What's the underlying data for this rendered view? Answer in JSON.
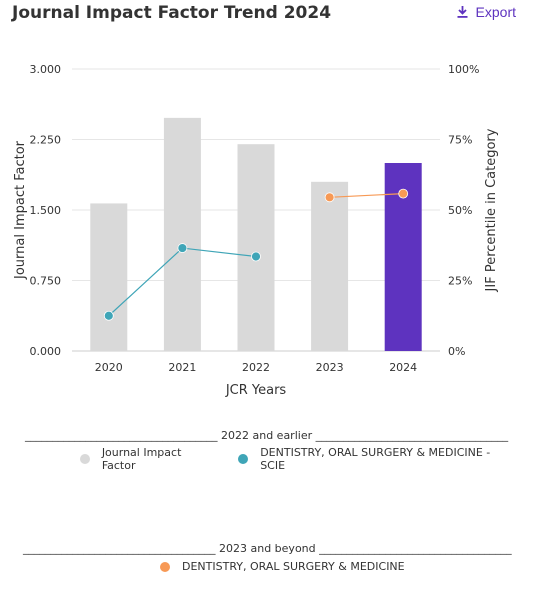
{
  "header": {
    "title": "Journal Impact Factor Trend 2024",
    "export_label": "Export"
  },
  "chart_data": {
    "type": "bar",
    "categories": [
      "2020",
      "2021",
      "2022",
      "2023",
      "2024"
    ],
    "xlabel": "JCR Years",
    "ylabel": "Journal Impact Factor",
    "y2label": "JIF Percentile in Category",
    "ylim": [
      0,
      3
    ],
    "yticks": [
      "0.000",
      "0.750",
      "1.500",
      "2.250",
      "3.000"
    ],
    "y2lim": [
      0,
      100
    ],
    "y2ticks": [
      "0%",
      "25%",
      "50%",
      "75%",
      "100%"
    ],
    "grid": true,
    "series": [
      {
        "name": "Journal Impact Factor",
        "kind": "bar",
        "axis": "left",
        "values": [
          1.57,
          2.48,
          2.2,
          1.8,
          2.0
        ],
        "colors": [
          "#d9d9d9",
          "#d9d9d9",
          "#d9d9d9",
          "#d9d9d9",
          "#5e33bf"
        ]
      },
      {
        "name": "DENTISTRY, ORAL SURGERY & MEDICINE - SCIE",
        "kind": "line",
        "axis": "right",
        "x": [
          "2020",
          "2021",
          "2022"
        ],
        "values": [
          12.5,
          36.5,
          33.5
        ],
        "color": "#3fa5b7"
      },
      {
        "name": "DENTISTRY, ORAL SURGERY & MEDICINE",
        "kind": "line",
        "axis": "right",
        "x": [
          "2023",
          "2024"
        ],
        "values": [
          54.5,
          55.8
        ],
        "color": "#f79955"
      }
    ]
  },
  "legend": {
    "group1_title": "___________________________________ 2022 and earlier ___________________________________",
    "group1_items": [
      {
        "label": "Journal Impact Factor",
        "color": "#d9d9d9"
      },
      {
        "label": "DENTISTRY, ORAL SURGERY & MEDICINE - SCIE",
        "color": "#3fa5b7"
      }
    ],
    "group2_title": "___________________________________ 2023 and beyond ___________________________________",
    "group2_items": [
      {
        "label": "DENTISTRY, ORAL SURGERY & MEDICINE",
        "color": "#f79955"
      }
    ]
  }
}
